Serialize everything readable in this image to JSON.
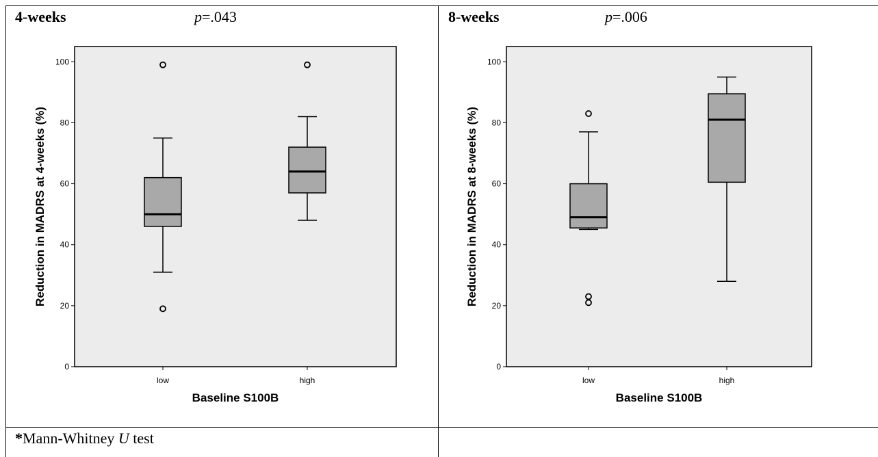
{
  "panels": [
    {
      "title": "4-weeks",
      "p_prefix": "p",
      "p_value": "=.043"
    },
    {
      "title": "8-weeks",
      "p_prefix": "p",
      "p_value": "=.006"
    }
  ],
  "footnote": {
    "star": "*",
    "pre": "Mann-Whitney ",
    "italic": "U",
    "post": " test"
  },
  "chart_data": [
    {
      "type": "box",
      "title": "",
      "xlabel": "Baseline S100B",
      "ylabel": "Reduction in MADRS at 4-weeks (%)",
      "ylim": [
        0,
        105
      ],
      "yticks": [
        0,
        20,
        40,
        60,
        80,
        100
      ],
      "categories": [
        "low",
        "high"
      ],
      "boxes": [
        {
          "category": "low",
          "whisker_low": 31,
          "q1": 46,
          "median": 50,
          "q3": 62,
          "whisker_high": 75,
          "outliers": [
            99,
            19
          ]
        },
        {
          "category": "high",
          "whisker_low": 48,
          "q1": 57,
          "median": 64,
          "q3": 72,
          "whisker_high": 82,
          "outliers": [
            99
          ]
        }
      ],
      "grid": false,
      "colors": {
        "plot_bg": "#ececec",
        "box_fill": "#a9a9a9"
      }
    },
    {
      "type": "box",
      "title": "",
      "xlabel": "Baseline S100B",
      "ylabel": "Reduction in MADRS at 8-weeks (%)",
      "ylim": [
        0,
        105
      ],
      "yticks": [
        0,
        20,
        40,
        60,
        80,
        100
      ],
      "categories": [
        "low",
        "high"
      ],
      "boxes": [
        {
          "category": "low",
          "whisker_low": 45,
          "q1": 45.5,
          "median": 49,
          "q3": 60,
          "whisker_high": 77,
          "outliers": [
            83,
            23,
            21
          ]
        },
        {
          "category": "high",
          "whisker_low": 28,
          "q1": 60.5,
          "median": 81,
          "q3": 89.5,
          "whisker_high": 95,
          "outliers": []
        }
      ],
      "grid": false,
      "colors": {
        "plot_bg": "#ececec",
        "box_fill": "#a9a9a9"
      }
    }
  ]
}
